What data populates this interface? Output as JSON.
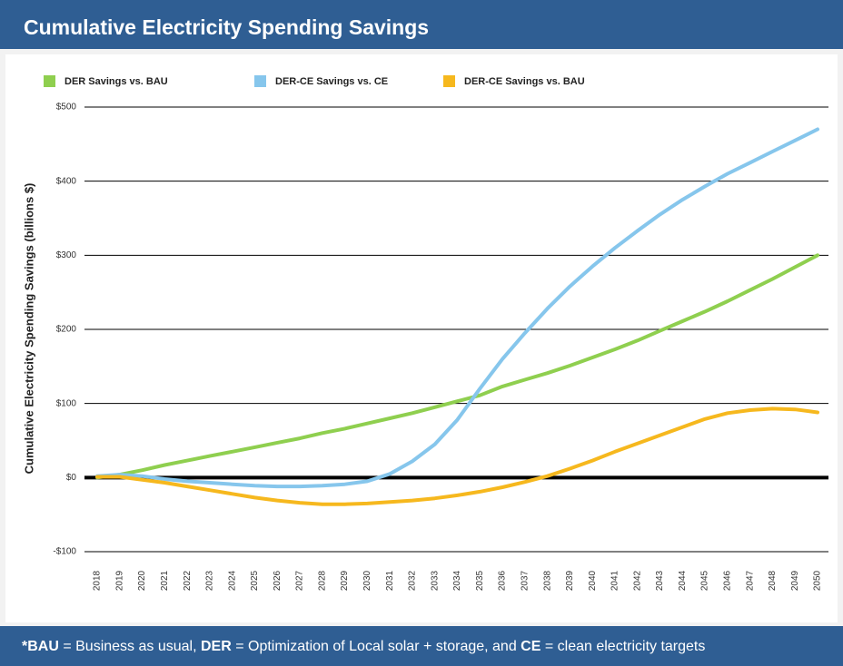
{
  "chart_data": {
    "type": "line",
    "title": "Cumulative Electricity Spending Savings",
    "y_label": "Cumulative Electricity Spending Savings (billions $)",
    "categories": [
      "2018",
      "2019",
      "2020",
      "2021",
      "2022",
      "2023",
      "2024",
      "2025",
      "2026",
      "2027",
      "2028",
      "2029",
      "2030",
      "2031",
      "2032",
      "2033",
      "2034",
      "2035",
      "2036",
      "2037",
      "2038",
      "2039",
      "2040",
      "2041",
      "2042",
      "2043",
      "2044",
      "2045",
      "2046",
      "2047",
      "2048",
      "2049",
      "2050"
    ],
    "series": [
      {
        "name": "DER Savings vs. BAU",
        "color": "#8fcf4f",
        "values": [
          0,
          4,
          10,
          17,
          23,
          29,
          35,
          41,
          47,
          53,
          60,
          66,
          73,
          80,
          87,
          95,
          103,
          111,
          123,
          132,
          141,
          151,
          162,
          173,
          185,
          198,
          211,
          224,
          238,
          253,
          268,
          284,
          300
        ]
      },
      {
        "name": "DER-CE Savings vs. CE",
        "color": "#86c6ec",
        "values": [
          2,
          4,
          2,
          -2,
          -5,
          -7,
          -9,
          -11,
          -12,
          -12,
          -11,
          -9,
          -5,
          5,
          22,
          45,
          78,
          120,
          160,
          195,
          228,
          258,
          285,
          310,
          333,
          355,
          375,
          393,
          410,
          425,
          440,
          455,
          470
        ]
      },
      {
        "name": "DER-CE Savings vs. BAU",
        "color": "#f6b81e",
        "values": [
          1,
          1,
          -3,
          -7,
          -12,
          -17,
          -22,
          -27,
          -31,
          -34,
          -36,
          -36,
          -35,
          -33,
          -31,
          -28,
          -24,
          -19,
          -13,
          -6,
          2,
          12,
          23,
          35,
          46,
          57,
          68,
          79,
          87,
          91,
          93,
          92,
          88
        ]
      }
    ],
    "ylim": [
      -100,
      500
    ],
    "yticks": [
      {
        "value": -100,
        "label": "-$100"
      },
      {
        "value": 0,
        "label": "$0"
      },
      {
        "value": 100,
        "label": "$100"
      },
      {
        "value": 200,
        "label": "$200"
      },
      {
        "value": 300,
        "label": "$300"
      },
      {
        "value": 400,
        "label": "$400"
      },
      {
        "value": 500,
        "label": "$500"
      }
    ],
    "grid": true,
    "legend": "top",
    "footnote": [
      {
        "text": "*BAU",
        "bold": true
      },
      {
        "text": " = Business as usual, ",
        "bold": false
      },
      {
        "text": "DER",
        "bold": true
      },
      {
        "text": " = Optimization of Local solar + storage, and ",
        "bold": false
      },
      {
        "text": "CE",
        "bold": true
      },
      {
        "text": " = clean electricity targets",
        "bold": false
      }
    ]
  }
}
